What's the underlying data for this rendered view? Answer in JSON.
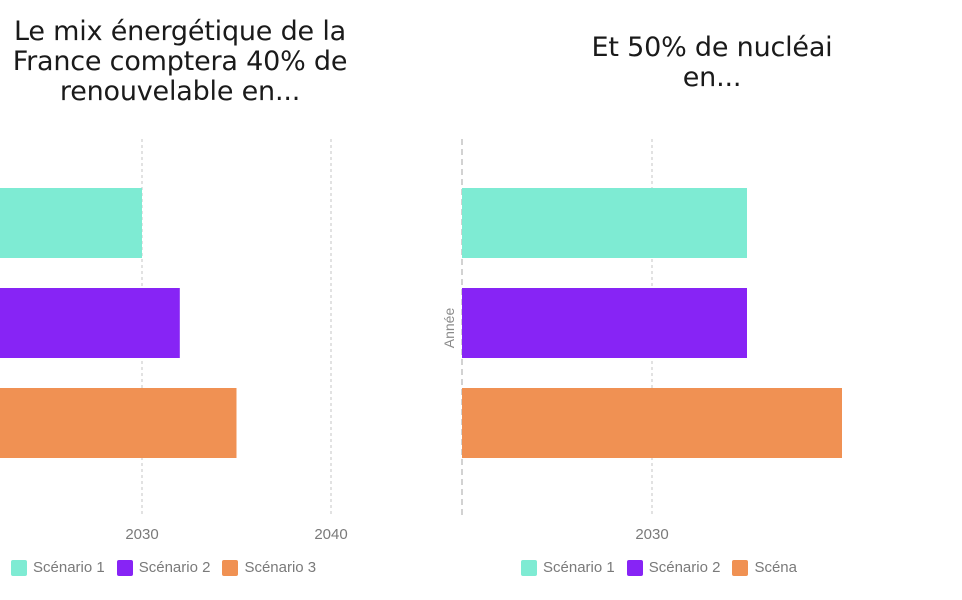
{
  "chart_data": [
    {
      "type": "bar",
      "orientation": "horizontal",
      "title_lines": [
        "Le mix énergétique de la",
        "France comptera 40% de",
        "renouvelable en..."
      ],
      "title": "Le mix énergétique de la France comptera 40% de renouvelable en...",
      "xlabel": "",
      "ylabel": "",
      "categories": [
        "Scénario 1",
        "Scénario 2",
        "Scénario 3"
      ],
      "series": [
        {
          "name": "Scénario 1",
          "values": [
            2030
          ],
          "color": "#7EEBD3"
        },
        {
          "name": "Scénario 2",
          "values": [
            2032
          ],
          "color": "#8724F5"
        },
        {
          "name": "Scénario 3",
          "values": [
            2035
          ],
          "color": "#F09153"
        }
      ],
      "xlim": [
        2020,
        2040
      ],
      "xticks": [
        2030,
        2040
      ],
      "grid": "vertical-dashed",
      "legend_position": "bottom"
    },
    {
      "type": "bar",
      "orientation": "horizontal",
      "title_lines": [
        "Et 50% de nucléai",
        "en..."
      ],
      "title": "Et 50% de nucléai en...",
      "xlabel": "",
      "ylabel": "Année",
      "categories": [
        "Scénario 1",
        "Scénario 2",
        "Scénario 3"
      ],
      "series": [
        {
          "name": "Scénario 1",
          "values": [
            2035
          ],
          "color": "#7EEBD3"
        },
        {
          "name": "Scénario 2",
          "values": [
            2035
          ],
          "color": "#8724F5"
        },
        {
          "name": "Scénario 3",
          "values": [
            2040
          ],
          "color": "#F09153"
        }
      ],
      "xlim": [
        2020,
        2040
      ],
      "xticks": [
        2030
      ],
      "grid": "vertical-dashed",
      "legend_position": "bottom"
    }
  ],
  "legend": {
    "items": [
      {
        "label": "Scénario 1",
        "color": "#7EEBD3"
      },
      {
        "label": "Scénario 2",
        "color": "#8724F5"
      },
      {
        "label": "Scénario 3",
        "color": "#F09153"
      }
    ],
    "right_truncated_label": "Scéna"
  }
}
